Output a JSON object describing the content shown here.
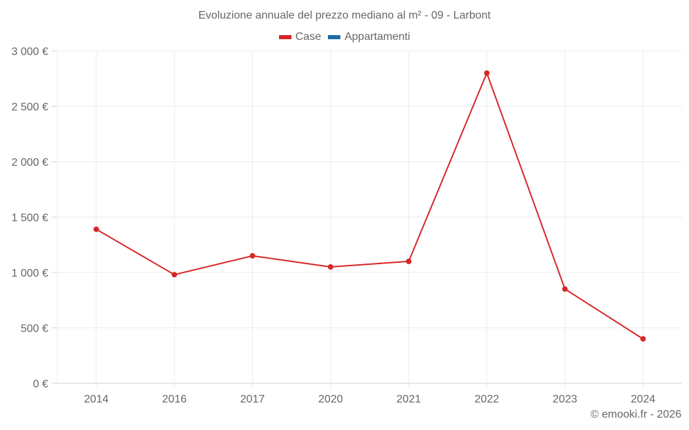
{
  "chart_data": {
    "type": "line",
    "title": "Evoluzione annuale del prezzo mediano al m² - 09 - Larbont",
    "xlabel": "",
    "ylabel": "",
    "categories": [
      "2014",
      "2016",
      "2017",
      "2020",
      "2021",
      "2022",
      "2023",
      "2024"
    ],
    "series": [
      {
        "name": "Case",
        "color": "#d62728",
        "values": [
          1390,
          980,
          1150,
          1050,
          1100,
          2800,
          850,
          400
        ]
      },
      {
        "name": "Appartamenti",
        "color": "#1f6ba5",
        "values": []
      }
    ],
    "ylim": [
      0,
      3000
    ],
    "yticks": [
      0,
      500,
      1000,
      1500,
      2000,
      2500,
      3000
    ],
    "ytick_labels": [
      "0 €",
      "500 €",
      "1 000 €",
      "1 500 €",
      "2 000 €",
      "2 500 €",
      "3 000 €"
    ],
    "grid": true,
    "legend_position": "top"
  },
  "legend": {
    "items": [
      {
        "label": "Case",
        "color": "#d62728"
      },
      {
        "label": "Appartamenti",
        "color": "#1f6ba5"
      }
    ]
  },
  "credit": "© emooki.fr - 2026"
}
